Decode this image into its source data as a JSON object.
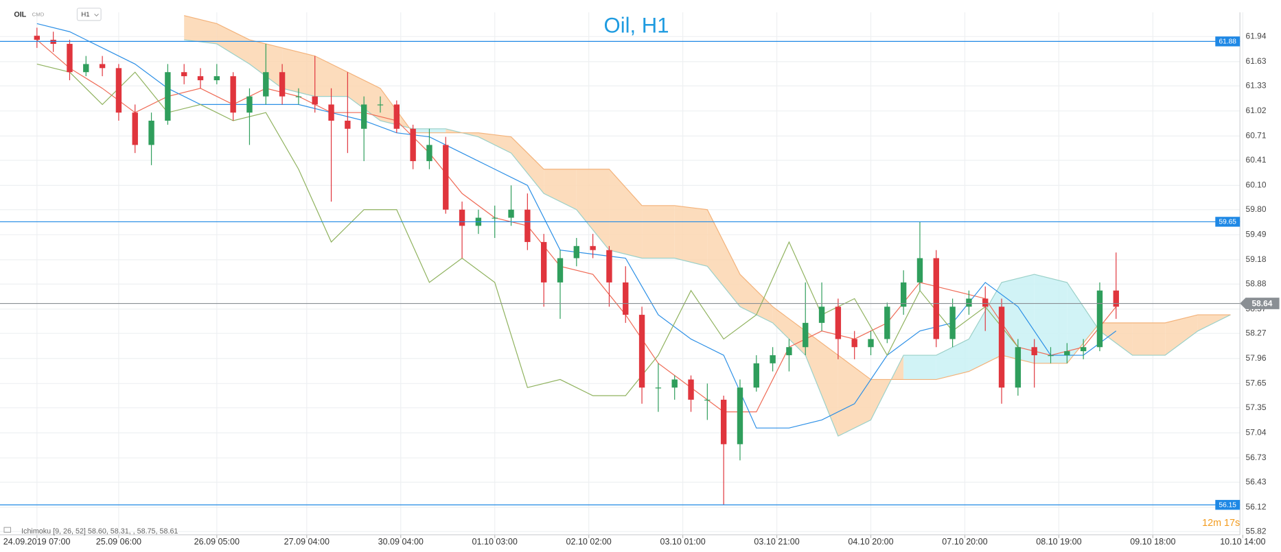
{
  "chart_data": {
    "type": "candlestick",
    "title": "Oil, H1",
    "header": {
      "symbol": "OIL",
      "group": "CMD",
      "timeframe": "H1"
    },
    "indicator_label": "Ichimoku [9, 26, 52] 58.60, 58.31, , 58.75, 58.61",
    "timer": "12m 17s",
    "up_color": "#2f9e5c",
    "down_color": "#e0353d",
    "xlim": [
      -9.04,
      294.3
    ],
    "ylim": [
      55.78,
      62.24
    ],
    "grid": true,
    "xticks": [
      {
        "value": 0,
        "label": "24.09.2019  07:00"
      },
      {
        "value": 20,
        "label": "25.09  06:00"
      },
      {
        "value": 44,
        "label": "26.09  05:00"
      },
      {
        "value": 66,
        "label": "27.09  04:00"
      },
      {
        "value": 89,
        "label": "30.09  04:00"
      },
      {
        "value": 112,
        "label": "01.10  03:00"
      },
      {
        "value": 135,
        "label": "02.10  02:00"
      },
      {
        "value": 158,
        "label": "03.10  01:00"
      },
      {
        "value": 181,
        "label": "03.10  21:00"
      },
      {
        "value": 204,
        "label": "04.10  20:00"
      },
      {
        "value": 227,
        "label": "07.10  20:00"
      },
      {
        "value": 250,
        "label": "08.10  19:00"
      },
      {
        "value": 273,
        "label": "09.10  18:00"
      },
      {
        "value": 295,
        "label": "10.10  14:00"
      }
    ],
    "yticks": [
      61.94,
      61.63,
      61.33,
      61.02,
      60.71,
      60.41,
      {
        "value": 60.1,
        "label": "60.10"
      },
      {
        "value": 59.8,
        "label": "59.80"
      },
      59.49,
      59.18,
      58.88,
      58.57,
      58.27,
      57.96,
      57.65,
      57.35,
      57.04,
      56.73,
      56.43,
      56.12,
      55.82
    ],
    "x": [
      0,
      4,
      8,
      12,
      16,
      20,
      24,
      28,
      32,
      36,
      40,
      44,
      48,
      52,
      56,
      60,
      64,
      68,
      72,
      76,
      80,
      84,
      88,
      92,
      96,
      100,
      104,
      108,
      112,
      116,
      120,
      124,
      128,
      132,
      136,
      140,
      144,
      148,
      152,
      156,
      160,
      164,
      168,
      172,
      176,
      180,
      184,
      188,
      192,
      196,
      200,
      204,
      208,
      212,
      216,
      220,
      224,
      228,
      232,
      236,
      240,
      244,
      248,
      252,
      256,
      260,
      264
    ],
    "open": [
      61.95,
      61.9,
      61.85,
      61.5,
      61.6,
      61.55,
      61.0,
      60.6,
      60.9,
      61.5,
      61.45,
      61.4,
      61.45,
      61.0,
      61.2,
      61.5,
      61.2,
      61.2,
      61.1,
      60.9,
      60.8,
      61.1,
      61.1,
      60.8,
      60.4,
      60.6,
      59.8,
      59.6,
      59.7,
      59.7,
      59.8,
      59.4,
      58.9,
      59.2,
      59.35,
      59.3,
      58.9,
      58.5,
      57.6,
      57.6,
      57.7,
      57.45,
      57.45,
      56.9,
      57.6,
      57.9,
      58.0,
      58.1,
      58.4,
      58.6,
      58.2,
      58.1,
      58.2,
      58.6,
      58.9,
      59.2,
      58.2,
      58.6,
      58.7,
      58.6,
      57.6,
      58.1,
      58.0,
      58.0,
      58.05,
      58.1,
      58.8
    ],
    "high": [
      62.05,
      62.0,
      61.9,
      61.7,
      61.7,
      61.6,
      61.1,
      61.0,
      61.6,
      61.6,
      61.55,
      61.6,
      61.5,
      61.3,
      61.85,
      61.6,
      61.3,
      61.7,
      61.3,
      61.5,
      61.2,
      61.2,
      61.15,
      60.85,
      60.8,
      60.7,
      59.9,
      59.8,
      59.85,
      60.1,
      60.0,
      59.5,
      59.3,
      59.45,
      59.5,
      59.35,
      59.1,
      58.6,
      57.9,
      57.75,
      57.75,
      57.65,
      57.5,
      57.7,
      58.0,
      58.1,
      58.2,
      58.9,
      58.9,
      58.7,
      58.3,
      58.3,
      58.65,
      59.05,
      59.65,
      59.3,
      58.7,
      58.8,
      58.85,
      58.7,
      58.2,
      58.2,
      58.1,
      58.15,
      58.2,
      58.9,
      59.27
    ],
    "low": [
      61.8,
      61.75,
      61.4,
      61.45,
      61.45,
      60.9,
      60.5,
      60.35,
      60.85,
      61.35,
      61.3,
      61.35,
      60.9,
      60.6,
      61.1,
      61.1,
      61.1,
      61.0,
      59.9,
      60.5,
      60.4,
      61.0,
      60.75,
      60.3,
      60.3,
      59.75,
      59.2,
      59.5,
      59.45,
      59.6,
      59.3,
      58.6,
      58.45,
      59.1,
      59.2,
      58.6,
      58.4,
      57.4,
      57.3,
      57.45,
      57.3,
      57.2,
      56.15,
      56.7,
      57.55,
      57.8,
      57.8,
      58.0,
      58.3,
      57.95,
      57.95,
      58.0,
      58.15,
      58.5,
      58.8,
      58.1,
      58.1,
      58.5,
      58.3,
      57.4,
      57.5,
      57.6,
      57.9,
      57.9,
      57.95,
      58.05,
      58.45
    ],
    "close": [
      61.9,
      61.85,
      61.5,
      61.6,
      61.55,
      61.0,
      60.6,
      60.9,
      61.5,
      61.45,
      61.4,
      61.45,
      61.0,
      61.2,
      61.5,
      61.2,
      61.2,
      61.1,
      60.9,
      60.8,
      61.1,
      61.1,
      60.8,
      60.4,
      60.6,
      59.8,
      59.6,
      59.7,
      59.7,
      59.8,
      59.4,
      58.9,
      59.2,
      59.35,
      59.3,
      58.9,
      58.5,
      57.6,
      57.6,
      57.7,
      57.45,
      57.45,
      56.9,
      57.6,
      57.9,
      58.0,
      58.1,
      58.4,
      58.6,
      58.2,
      58.1,
      58.2,
      58.6,
      58.9,
      59.2,
      58.2,
      58.6,
      58.7,
      58.6,
      57.6,
      58.1,
      58.0,
      58.0,
      58.05,
      58.1,
      58.8,
      58.6
    ],
    "cloud": {
      "x": [
        36,
        44,
        52,
        60,
        68,
        76,
        84,
        92,
        100,
        108,
        116,
        124,
        132,
        140,
        148,
        156,
        164,
        172,
        180,
        188,
        196,
        204,
        212,
        220,
        228,
        236,
        244,
        252,
        260,
        268,
        276,
        284,
        292
      ],
      "span_a": [
        61.9,
        61.85,
        61.6,
        61.3,
        61.2,
        61.2,
        60.9,
        60.8,
        60.8,
        60.7,
        60.5,
        60.0,
        59.8,
        59.3,
        59.2,
        59.2,
        59.1,
        58.6,
        58.4,
        58.0,
        57.0,
        57.2,
        58.0,
        58.0,
        58.2,
        58.9,
        59.0,
        58.9,
        58.3,
        58.0,
        58.0,
        58.3,
        58.5
      ],
      "span_b": [
        62.2,
        62.1,
        61.9,
        61.8,
        61.7,
        61.5,
        61.3,
        60.75,
        60.75,
        60.75,
        60.7,
        60.3,
        60.3,
        60.3,
        59.85,
        59.85,
        59.8,
        59.0,
        58.6,
        58.3,
        58.0,
        57.7,
        57.7,
        57.7,
        57.8,
        58.0,
        57.9,
        57.9,
        58.4,
        58.4,
        58.4,
        58.5,
        58.5
      ],
      "color_a": "#9ad0c8",
      "color_b": "#f3b27a",
      "fill_bear": "#fbd6b0",
      "fill_bull": "#c9f1f4"
    },
    "overlays": [
      {
        "color": "#ef6a55",
        "x": [
          0,
          8,
          16,
          24,
          32,
          40,
          48,
          56,
          64,
          72,
          80,
          88,
          96,
          104,
          112,
          120,
          128,
          136,
          144,
          152,
          160,
          168,
          176,
          184,
          192,
          200,
          208,
          216,
          224,
          232,
          240,
          248,
          256,
          264
        ],
        "values": [
          61.9,
          61.55,
          61.3,
          61.0,
          61.2,
          61.3,
          61.1,
          61.3,
          61.2,
          61.0,
          61.0,
          60.9,
          60.5,
          60.0,
          59.7,
          59.6,
          59.1,
          59.0,
          58.5,
          57.9,
          57.6,
          57.3,
          57.3,
          58.1,
          58.3,
          58.2,
          58.4,
          58.9,
          58.8,
          58.7,
          58.1,
          58.0,
          58.1,
          58.6
        ]
      },
      {
        "color": "#2b8fe6",
        "x": [
          0,
          8,
          16,
          24,
          32,
          40,
          48,
          56,
          64,
          72,
          80,
          88,
          96,
          104,
          112,
          120,
          128,
          136,
          144,
          152,
          160,
          168,
          176,
          184,
          192,
          200,
          208,
          216,
          224,
          232,
          240,
          248,
          256,
          264
        ],
        "values": [
          62.1,
          62.0,
          61.8,
          61.6,
          61.3,
          61.1,
          61.1,
          61.1,
          61.1,
          61.0,
          60.9,
          60.75,
          60.7,
          60.5,
          60.3,
          60.1,
          59.3,
          59.25,
          59.2,
          58.5,
          58.2,
          58.0,
          57.1,
          57.1,
          57.2,
          57.4,
          58.0,
          58.3,
          58.4,
          58.9,
          58.6,
          58.0,
          58.0,
          58.3
        ]
      },
      {
        "color": "#8fb25e",
        "x": [
          0,
          8,
          16,
          24,
          32,
          40,
          48,
          56,
          64,
          72,
          80,
          88,
          96,
          104,
          112,
          120,
          128,
          136,
          144,
          152,
          160,
          168,
          176,
          184,
          192,
          200,
          208,
          216,
          224,
          232,
          240
        ],
        "values": [
          61.6,
          61.5,
          61.1,
          61.5,
          61.0,
          61.1,
          60.9,
          61.0,
          60.3,
          59.4,
          59.8,
          59.8,
          58.9,
          59.2,
          58.9,
          57.6,
          57.7,
          57.5,
          57.5,
          58.0,
          58.8,
          58.2,
          58.5,
          59.4,
          58.5,
          58.7,
          58.0,
          58.8,
          58.3,
          58.6,
          58.1
        ]
      }
    ],
    "levels": [
      {
        "value": 61.88,
        "color": "#1e88e5"
      },
      {
        "value": 59.65,
        "color": "#1e88e5"
      },
      {
        "value": 56.15,
        "color": "#1e88e5"
      }
    ],
    "last_price": 58.64,
    "last_price_color": "#8a8f94"
  }
}
